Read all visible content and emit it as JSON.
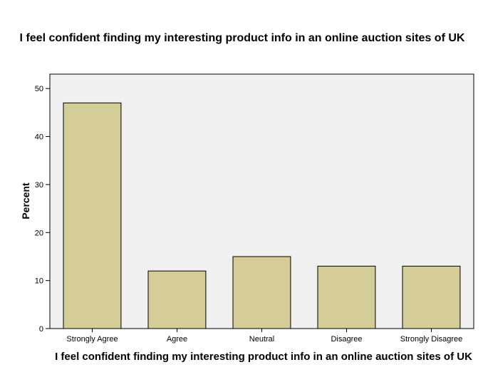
{
  "chart_data": {
    "type": "bar",
    "title": "I feel confident finding my interesting product info in an online auction sites of UK",
    "xlabel": "I feel confident finding my interesting product info in an online auction sites of UK",
    "ylabel": "Percent",
    "categories": [
      "Strongly Agree",
      "Agree",
      "Neutral",
      "Disagree",
      "Strongly Disagree"
    ],
    "values": [
      47,
      12,
      15,
      13,
      13
    ],
    "ylim": [
      0,
      53
    ],
    "yticks": [
      0,
      10,
      20,
      30,
      40,
      50
    ],
    "grid": false,
    "colors": {
      "bar_fill": "#d4cd98",
      "bar_stroke": "#000000",
      "plot_bg": "#f0f0f0"
    }
  }
}
